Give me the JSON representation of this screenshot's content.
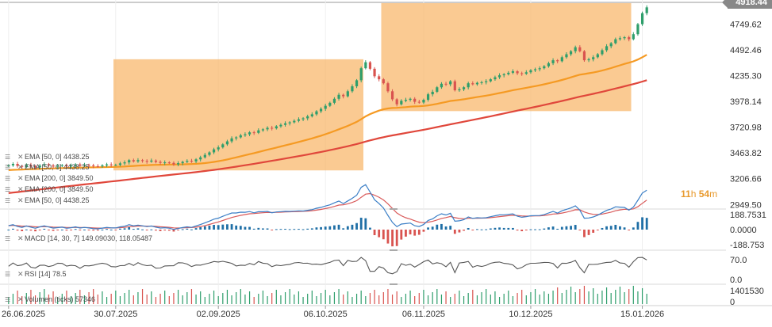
{
  "chart_data": {
    "type": "candlestick",
    "current_price_label": "4918.44",
    "countdown": {
      "hours": "11",
      "h": "h",
      "minutes": "54",
      "m": "m"
    },
    "x_axis": {
      "labels": [
        "26.06.2025",
        "30.07.2025",
        "02.09.2025",
        "06.10.2025",
        "06.11.2025",
        "10.12.2025",
        "15.01.2026"
      ],
      "dates": [
        0,
        24,
        47,
        71,
        93,
        117,
        142
      ]
    },
    "price_axis": {
      "ticks": [
        "4749.62",
        "4492.46",
        "4235.30",
        "3978.14",
        "3720.98",
        "3463.82",
        "3206.66",
        "2949.50"
      ],
      "values": [
        4749.62,
        4492.46,
        4235.3,
        3978.14,
        3720.98,
        3463.82,
        3206.66,
        2949.5
      ],
      "range": [
        2920,
        4960
      ]
    },
    "highlight_zones": [
      {
        "from": 24,
        "to": 79,
        "low": 3290,
        "high": 4400
      },
      {
        "from": 84,
        "to": 139,
        "low": 3882,
        "high": 4960
      }
    ],
    "close": [
      3340,
      3355,
      3335,
      3325,
      3345,
      3332,
      3320,
      3338,
      3352,
      3340,
      3328,
      3335,
      3342,
      3330,
      3338,
      3350,
      3336,
      3345,
      3340,
      3332,
      3330,
      3340,
      3350,
      3345,
      3345,
      3360,
      3370,
      3392,
      3380,
      3392,
      3385,
      3378,
      3388,
      3375,
      3365,
      3370,
      3365,
      3350,
      3362,
      3375,
      3385,
      3380,
      3400,
      3420,
      3445,
      3470,
      3500,
      3520,
      3550,
      3580,
      3610,
      3620,
      3640,
      3650,
      3670,
      3665,
      3690,
      3700,
      3715,
      3710,
      3730,
      3745,
      3760,
      3770,
      3785,
      3800,
      3810,
      3830,
      3850,
      3880,
      3905,
      3935,
      3965,
      4005,
      4045,
      4030,
      4080,
      4130,
      4190,
      4310,
      4370,
      4305,
      4230,
      4200,
      4160,
      4080,
      4000,
      3950,
      3985,
      3995,
      4005,
      3975,
      3968,
      3995,
      4050,
      4075,
      4120,
      4155,
      4150,
      4180,
      4090,
      4100,
      4120,
      4160,
      4150,
      4165,
      4170,
      4180,
      4200,
      4220,
      4240,
      4250,
      4265,
      4280,
      4260,
      4255,
      4270,
      4290,
      4300,
      4310,
      4330,
      4360,
      4390,
      4380,
      4420,
      4450,
      4480,
      4520,
      4480,
      4390,
      4400,
      4420,
      4450,
      4490,
      4530,
      4560,
      4600,
      4610,
      4620,
      4600,
      4650,
      4750,
      4860,
      4918
    ],
    "ema_series": [
      {
        "name": "EMA [50, 0]",
        "value": "4438.25",
        "color": "#f59a23"
      },
      {
        "name": "EMA [200, 0]",
        "value": "3849.50",
        "color": "#e0473b"
      }
    ],
    "legend_lines": [
      "EMA [50, 0] 4438.25",
      "EMA [50, 0] 4438.25",
      "EMA [200, 0] 3849.50",
      "EMA [200, 0] 3849.50",
      "EMA [50, 0] 4438.25"
    ],
    "ema_start": {
      "ema50": 3290,
      "ema200": 3060
    },
    "macd": {
      "label": "MACD [14, 30, 7] 149.09030, 118.05487",
      "ticks": [
        "188.7531",
        "0.0000",
        "-188.753"
      ],
      "values": [
        188.7531,
        0,
        -188.753
      ]
    },
    "rsi": {
      "label": "RSI [14] 78.5",
      "ticks": [
        "70.0",
        "0.0"
      ],
      "values": [
        70,
        0
      ],
      "current": 78.5
    },
    "volume": {
      "label": "Volumen (ticks) 57346",
      "ticks": [
        "1401530",
        "0"
      ],
      "values": [
        1401530,
        0
      ]
    },
    "colors": {
      "up": "#2e9e6b",
      "down": "#d9534f",
      "macd_line": "#3a7ec6",
      "signal_line": "#d95a5a",
      "macd_hist": "#1f6fa6",
      "rsi_line": "#555555",
      "zone": "#f8b668"
    }
  }
}
